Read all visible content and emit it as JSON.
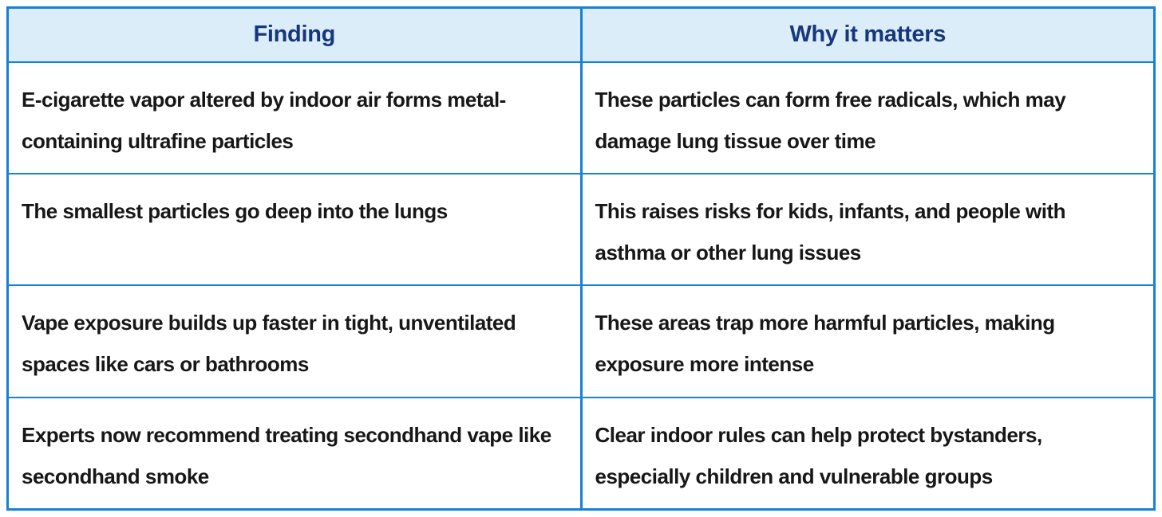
{
  "colors": {
    "border": "#1581d7",
    "header_bg": "#daedf8",
    "header_text": "#17377d",
    "body_text": "#171717",
    "page_bg": "#ffffff"
  },
  "table": {
    "columns": [
      {
        "label": "Finding"
      },
      {
        "label": "Why it matters"
      }
    ],
    "rows": [
      {
        "finding": "E-cigarette vapor altered by indoor air forms metal-containing ultrafine particles",
        "why": "These particles can form free radicals, which may damage lung tissue over time"
      },
      {
        "finding": "The smallest particles go deep into the lungs",
        "why": "This raises risks for kids, infants, and people with asthma or other lung issues"
      },
      {
        "finding": "Vape exposure builds up faster in tight, unventilated spaces like cars or bathrooms",
        "why": "These areas trap more harmful particles, making exposure more intense"
      },
      {
        "finding": "Experts now recommend treating secondhand vape like secondhand smoke",
        "why": "Clear indoor rules can help protect bystanders, especially children and vulnerable groups"
      }
    ]
  },
  "chart_data": {
    "type": "table",
    "title": "",
    "columns": [
      "Finding",
      "Why it matters"
    ],
    "rows": [
      [
        "E-cigarette vapor altered by indoor air forms metal-containing ultrafine particles",
        "These particles can form free radicals, which may damage lung tissue over time"
      ],
      [
        "The smallest particles go deep into the lungs",
        "This raises risks for kids, infants, and people with asthma or other lung issues"
      ],
      [
        "Vape exposure builds up faster in tight, unventilated spaces like cars or bathrooms",
        "These areas trap more harmful particles, making exposure more intense"
      ],
      [
        "Experts now recommend treating secondhand vape like secondhand smoke",
        "Clear indoor rules can help protect bystanders, especially children and vulnerable groups"
      ]
    ],
    "layout": {
      "header_position": "top",
      "grid": true,
      "column_widths_pct": [
        50,
        50
      ]
    }
  }
}
